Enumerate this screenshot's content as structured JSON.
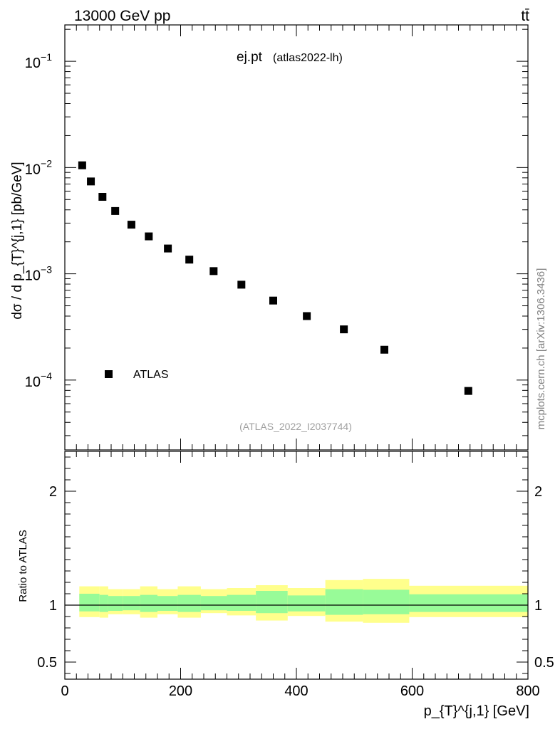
{
  "header": {
    "energy_label": "13000 GeV pp",
    "process_label": "tt̄"
  },
  "plot": {
    "title_main": "ej.pt",
    "title_sub": "(atlas2022-lh)",
    "analysis_id": "(ATLAS_2022_I2037744)",
    "side_label": "mcplots.cern.ch [arXiv:1306.3436]",
    "y_label": "dσ / d p_{T}^{j,1} [pb/GeV]",
    "ratio_y_label": "Ratio to ATLAS",
    "x_label": "p_{T}^{j,1} [GeV]",
    "legend_label": "ATLAS"
  },
  "chart_data": [
    {
      "type": "scatter",
      "title": "ej.pt",
      "xlabel": "p_{T}^{j,1} [GeV]",
      "ylabel": "dσ / d p_{T}^{j,1} [pb/GeV]",
      "yscale": "log",
      "xlim": [
        0,
        800
      ],
      "ylim": [
        2.2e-05,
        0.22
      ],
      "x_ticks": [
        0,
        200,
        400,
        600,
        800
      ],
      "y_ticks": [
        {
          "value": 0.0001,
          "base": "10",
          "exp": "−4"
        },
        {
          "value": 0.001,
          "base": "10",
          "exp": "−3"
        },
        {
          "value": 0.01,
          "base": "10",
          "exp": "−2"
        },
        {
          "value": 0.1,
          "base": "10",
          "exp": "−1"
        }
      ],
      "series": [
        {
          "name": "ATLAS",
          "x": [
            30,
            45,
            65,
            87,
            115,
            145,
            178,
            215,
            257,
            305,
            360,
            418,
            482,
            552,
            697
          ],
          "values": [
            0.0105,
            0.0074,
            0.0053,
            0.0039,
            0.0029,
            0.00225,
            0.00173,
            0.00136,
            0.00106,
            0.00079,
            0.00056,
            0.0004,
            0.0003,
            0.000193,
            7.9e-05
          ]
        }
      ],
      "legend": "left"
    },
    {
      "type": "area",
      "title": "Ratio to ATLAS",
      "ylabel": "Ratio to ATLAS",
      "xlabel": "p_{T}^{j,1} [GeV]",
      "xlim": [
        0,
        800
      ],
      "ylim": [
        0.35,
        2.35
      ],
      "y_ticks": [
        "0.5",
        "1",
        "2"
      ],
      "x_ticks": [
        0,
        200,
        400,
        600,
        800
      ],
      "reference_line": 1.0,
      "bins": [
        25,
        60,
        75,
        100,
        130,
        160,
        195,
        235,
        280,
        330,
        385,
        450,
        515,
        595,
        800
      ],
      "band_outer": [
        [
          0.895,
          1.165
        ],
        [
          0.89,
          1.165
        ],
        [
          0.92,
          1.14
        ],
        [
          0.92,
          1.14
        ],
        [
          0.89,
          1.165
        ],
        [
          0.92,
          1.14
        ],
        [
          0.89,
          1.165
        ],
        [
          0.93,
          1.14
        ],
        [
          0.91,
          1.15
        ],
        [
          0.865,
          1.175
        ],
        [
          0.905,
          1.15
        ],
        [
          0.855,
          1.22
        ],
        [
          0.845,
          1.23
        ],
        [
          0.895,
          1.17
        ]
      ],
      "band_inner": [
        [
          0.945,
          1.1
        ],
        [
          0.94,
          1.09
        ],
        [
          0.95,
          1.08
        ],
        [
          0.955,
          1.08
        ],
        [
          0.94,
          1.09
        ],
        [
          0.95,
          1.08
        ],
        [
          0.94,
          1.09
        ],
        [
          0.955,
          1.08
        ],
        [
          0.95,
          1.09
        ],
        [
          0.93,
          1.125
        ],
        [
          0.945,
          1.085
        ],
        [
          0.915,
          1.14
        ],
        [
          0.92,
          1.135
        ],
        [
          0.94,
          1.095
        ]
      ],
      "colors": {
        "outer": "#ffff8c",
        "inner": "#98fb98"
      }
    }
  ]
}
